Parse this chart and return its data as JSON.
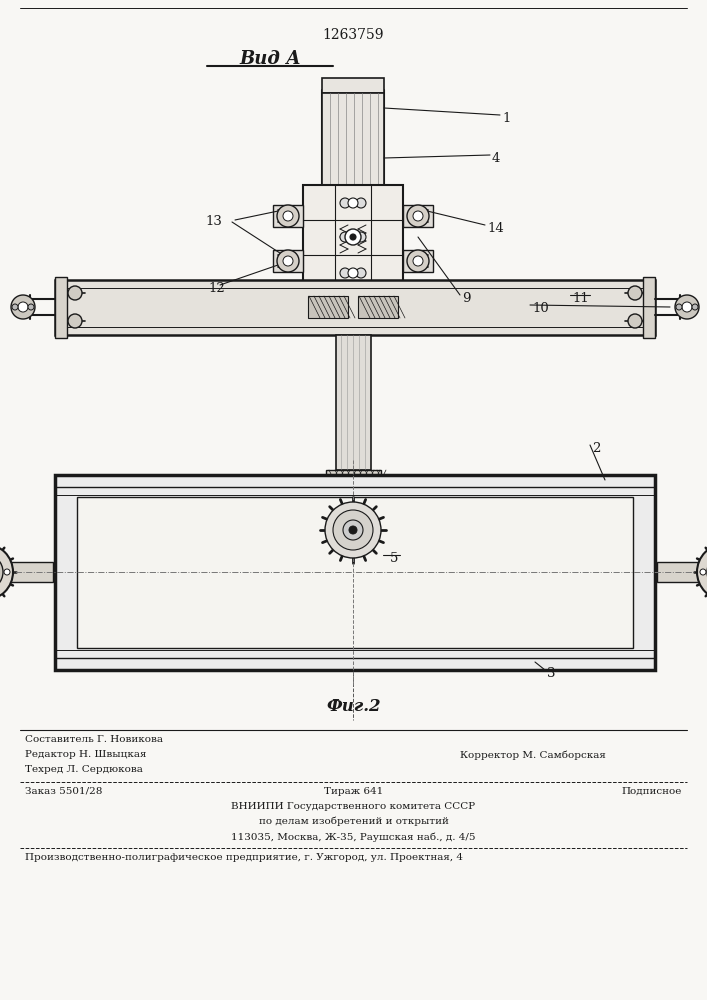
{
  "patent_number": "1263759",
  "view_label": "Вид А",
  "fig_label": "Фиг.2",
  "bg_color": "#f8f7f4",
  "line_color": "#1a1a1a",
  "footer": {
    "editor": "Редактор Н. Швыцкая",
    "composer_label": "Составитель Г. Новикова",
    "techred": "Техред Л. Сердюкова",
    "corrector": "Корректор М. Самборская",
    "order": "Заказ 5501/28",
    "tirazh": "Тираж 641",
    "podpisnoe": "Подписное",
    "vniip1": "ВНИИПИ Государственного комитета СССР",
    "vniip2": "по делам изобретений и открытий",
    "vniip3": "113035, Москва, Ж-35, Раушская наб., д. 4/5",
    "printer": "Производственно-полиграфическое предприятие, г. Ужгород, ул. Проектная, 4"
  }
}
